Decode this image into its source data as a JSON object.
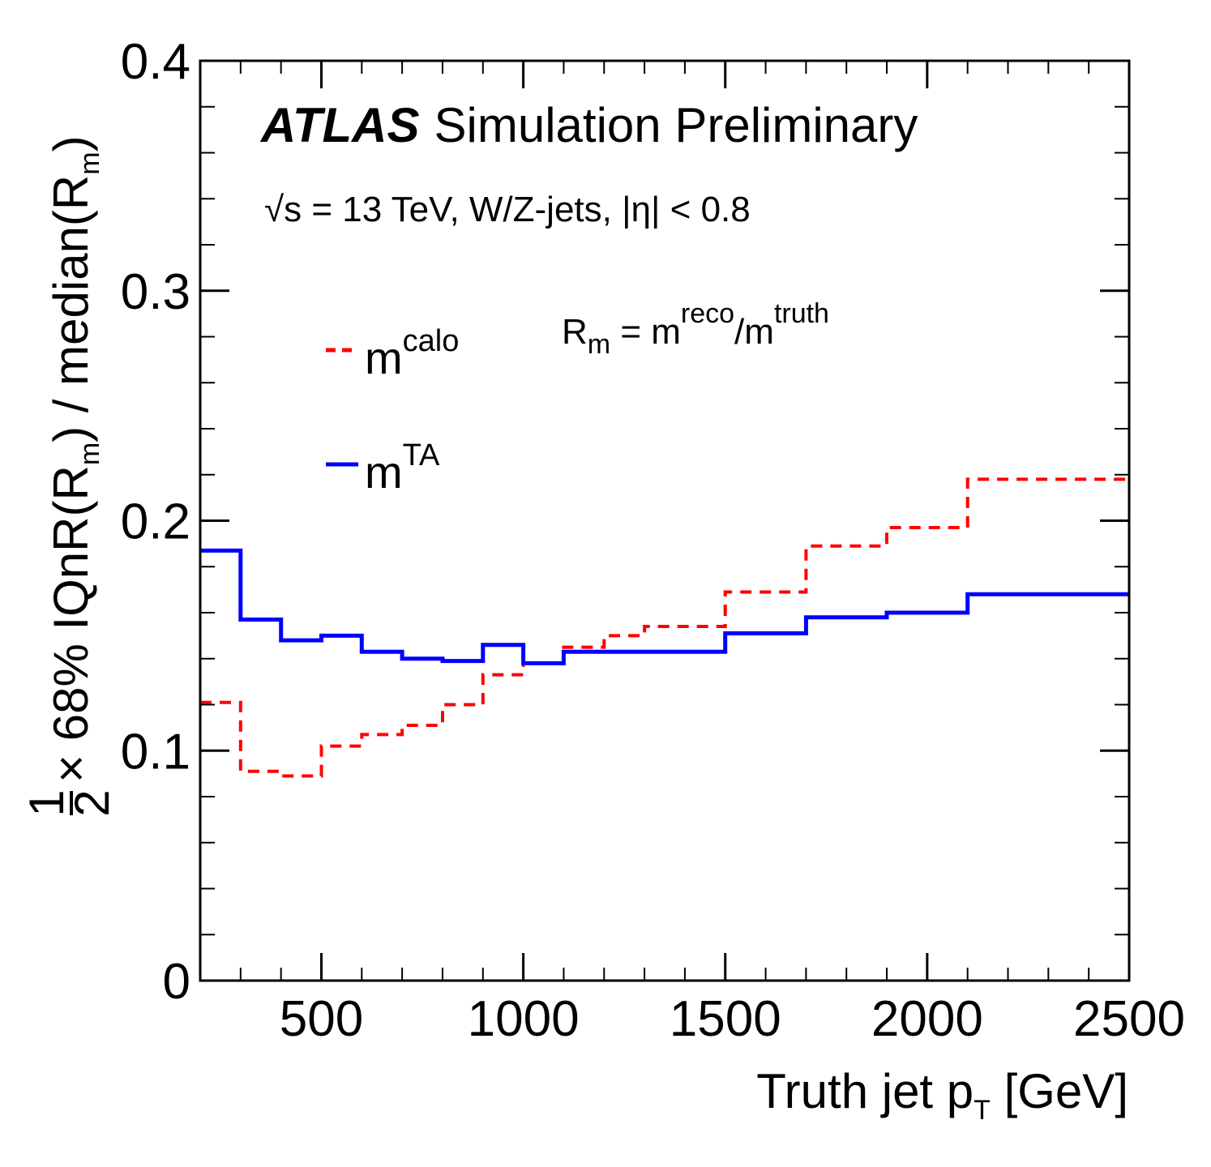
{
  "chart_data": {
    "type": "line",
    "step": true,
    "xlim": [
      200,
      2500
    ],
    "ylim": [
      0,
      0.4
    ],
    "x_major_ticks": [
      500,
      1000,
      1500,
      2000,
      2500
    ],
    "x_tick_labels": [
      "500",
      "1000",
      "1500",
      "2000",
      "2500"
    ],
    "x_minor_step": 100,
    "y_major_ticks": [
      0,
      0.1,
      0.2,
      0.3,
      0.4
    ],
    "y_tick_labels": [
      "0",
      "0.1",
      "0.2",
      "0.3",
      "0.4"
    ],
    "y_minor_step": 0.02,
    "xlabel": {
      "main": "Truth jet p",
      "sub": "T",
      "unit": " [GeV]"
    },
    "ylabel": {
      "frac_num": "1",
      "frac_den": "2",
      "part1": " × 68% IQnR(R",
      "sub1": "m",
      "part2": ") / median(R",
      "sub2": "m",
      "part3": ")"
    },
    "annotations": {
      "experiment": "ATLAS",
      "status": "Simulation Preliminary",
      "conditions": "√s = 13 TeV, W/Z-jets, |η| < 0.8",
      "definition": {
        "R": "R",
        "R_sub": "m",
        "eq": " = m",
        "reco": "reco",
        "slash": "/m",
        "truth": "truth"
      }
    },
    "legend_position": "top-left",
    "bin_edges": [
      200,
      300,
      400,
      500,
      600,
      700,
      800,
      900,
      1000,
      1100,
      1200,
      1300,
      1500,
      1700,
      1900,
      2100,
      2500
    ],
    "series": [
      {
        "key": "calo",
        "label_base": "m",
        "label_sup": "calo",
        "color": "#ff0000",
        "dashed": true,
        "values": [
          0.121,
          0.091,
          0.089,
          0.102,
          0.107,
          0.111,
          0.12,
          0.133,
          0.138,
          0.145,
          0.15,
          0.154,
          0.169,
          0.189,
          0.197,
          0.218
        ]
      },
      {
        "key": "ta",
        "label_base": "m",
        "label_sup": "TA",
        "color": "#0000ff",
        "dashed": false,
        "values": [
          0.187,
          0.157,
          0.148,
          0.15,
          0.143,
          0.14,
          0.139,
          0.146,
          0.138,
          0.143,
          0.143,
          0.143,
          0.151,
          0.158,
          0.16,
          0.168
        ]
      }
    ]
  }
}
